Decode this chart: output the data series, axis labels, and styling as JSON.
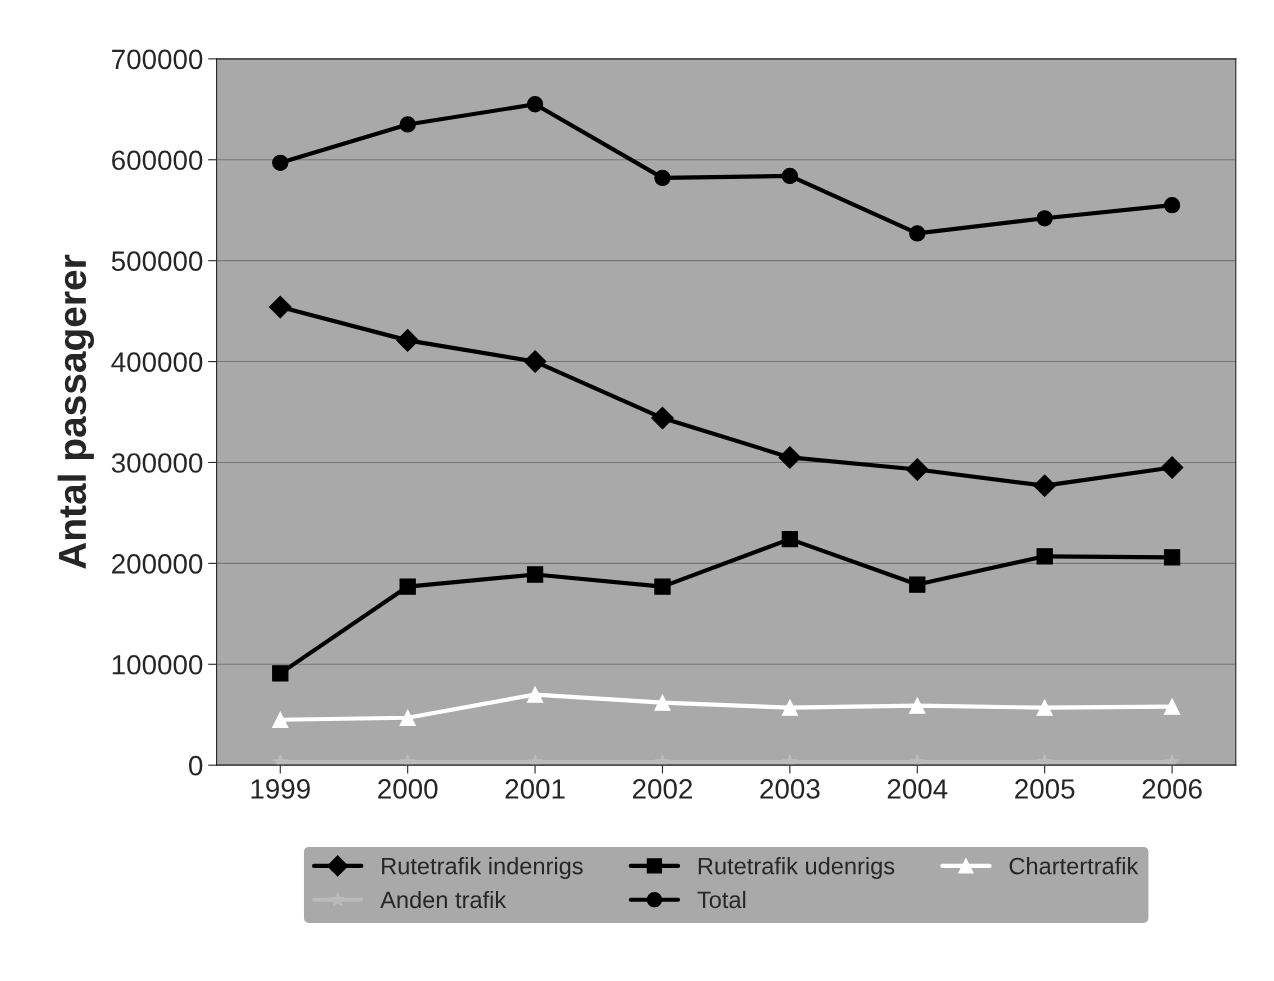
{
  "chart_data": {
    "type": "line",
    "ylabel": "Antal passagerer",
    "categories": [
      "1999",
      "2000",
      "2001",
      "2002",
      "2003",
      "2004",
      "2005",
      "2006"
    ],
    "ylim": [
      0,
      700000
    ],
    "yticks": [
      0,
      100000,
      200000,
      300000,
      400000,
      500000,
      600000,
      700000
    ],
    "grid": "y",
    "legend": "bottom",
    "series": [
      {
        "name": "Rutetrafik indenrigs",
        "color": "#000000",
        "marker": "diamond",
        "values": [
          454000,
          421000,
          400000,
          344000,
          305000,
          293000,
          277000,
          295000
        ]
      },
      {
        "name": "Rutetrafik udenrigs",
        "color": "#000000",
        "marker": "square",
        "values": [
          91000,
          177000,
          189000,
          177000,
          224000,
          179000,
          207000,
          206000
        ]
      },
      {
        "name": "Chartertrafik",
        "color": "#ffffff",
        "marker": "triangle",
        "values": [
          45000,
          47000,
          70000,
          62000,
          57000,
          59000,
          57000,
          58000
        ]
      },
      {
        "name": "Anden trafik",
        "color": "#bbbbbb",
        "marker": "star",
        "values": [
          3000,
          3000,
          3000,
          3000,
          3000,
          3000,
          3000,
          3000
        ]
      },
      {
        "name": "Total",
        "color": "#000000",
        "marker": "circle",
        "values": [
          597000,
          635000,
          655000,
          582000,
          584000,
          527000,
          542000,
          555000
        ]
      }
    ]
  }
}
